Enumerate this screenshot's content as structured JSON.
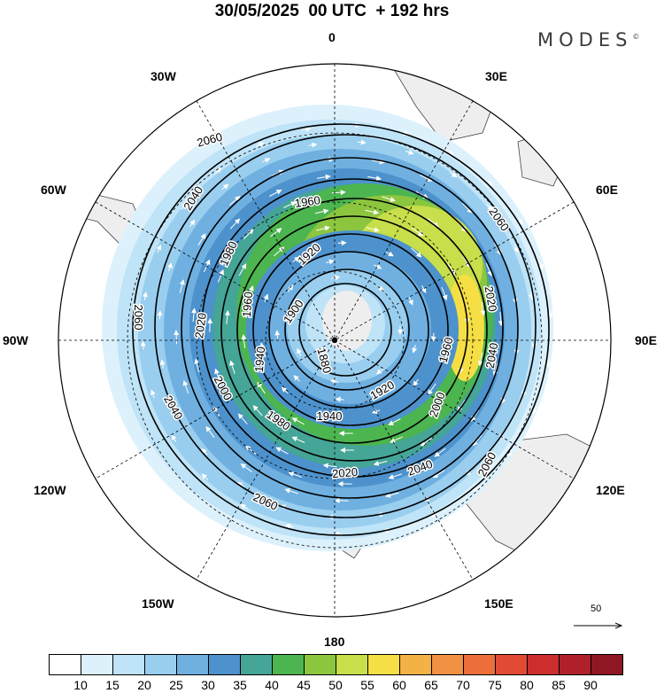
{
  "title": "30/05/2025  00 UTC  + 192 hrs",
  "brand": "MODES",
  "brand_mark": "©",
  "longitude_labels": {
    "top": "0",
    "upper_left": "30W",
    "upper_right": "30E",
    "left_upper": "60W",
    "right_upper": "60E",
    "left": "90W",
    "right": "90E",
    "left_lower": "120W",
    "right_lower": "120E",
    "lower_left": "150W",
    "lower_right": "150E",
    "bottom": "180"
  },
  "contour_labels": [
    "2060",
    "2040",
    "1980",
    "1960",
    "1920",
    "2060",
    "2060",
    "2020",
    "1960",
    "1900",
    "2020",
    "1940",
    "1880",
    "1960",
    "2040",
    "2040",
    "2000",
    "1920",
    "1980",
    "1940",
    "2000",
    "2020",
    "2040",
    "2060",
    "2060"
  ],
  "reference_vector": {
    "label": "50"
  },
  "colorbar": {
    "colors": [
      "#ffffff",
      "#dcf1fb",
      "#bfe3f7",
      "#99ceef",
      "#6fb0e1",
      "#4d92cc",
      "#45a596",
      "#4cb54f",
      "#8cc63f",
      "#c8de4a",
      "#f6df45",
      "#f4b245",
      "#f19143",
      "#ec6f3b",
      "#e14b35",
      "#cc2e2e",
      "#b0202b",
      "#8f1623"
    ],
    "ticks": [
      "10",
      "15",
      "20",
      "25",
      "30",
      "35",
      "40",
      "45",
      "50",
      "55",
      "60",
      "65",
      "70",
      "75",
      "80",
      "85",
      "90"
    ]
  }
}
